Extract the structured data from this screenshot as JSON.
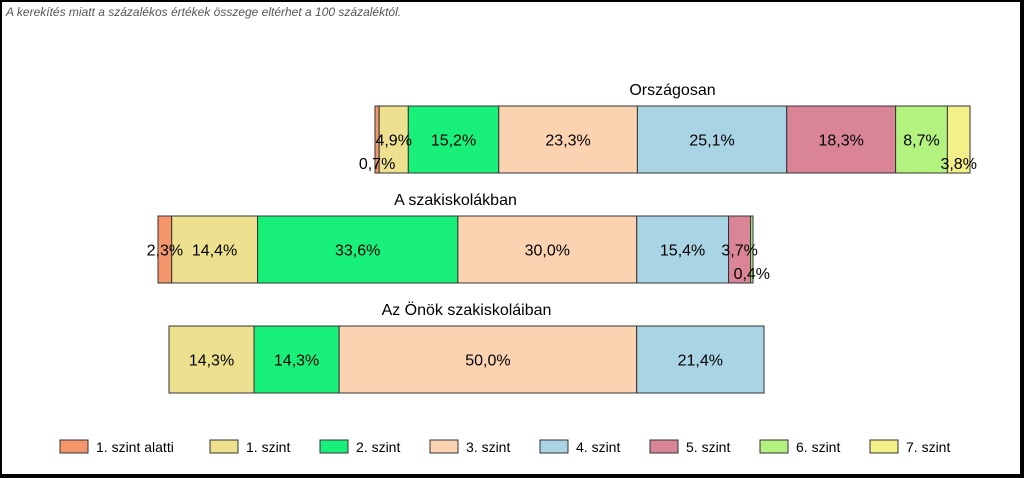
{
  "note": "A kerekítés miatt a  százalékos értékek összege eltérhet a 100 százaléktól.",
  "chart_data": {
    "type": "bar",
    "orientation": "horizontal-stacked",
    "unit": "%",
    "series": [
      {
        "name": "1. szint alatti",
        "color": "#f4956b"
      },
      {
        "name": "1. szint",
        "color": "#ede08f"
      },
      {
        "name": "2. szint",
        "color": "#19f07a"
      },
      {
        "name": "3. szint",
        "color": "#fcd3b0"
      },
      {
        "name": "4. szint",
        "color": "#a9d4e4"
      },
      {
        "name": "5. szint",
        "color": "#d98497"
      },
      {
        "name": "6. szint",
        "color": "#b3f27f"
      },
      {
        "name": "7. szint",
        "color": "#f3f08a"
      }
    ],
    "groups": [
      {
        "title": "Országosan",
        "values": [
          0.7,
          4.9,
          15.2,
          23.3,
          25.1,
          18.3,
          8.7,
          3.8
        ],
        "labels": [
          "0,7%",
          "4,9%",
          "15,2%",
          "23,3%",
          "25,1%",
          "18,3%",
          "8,7%",
          "3,8%"
        ]
      },
      {
        "title": "A szakiskolákban",
        "values": [
          2.3,
          14.4,
          33.6,
          30.0,
          15.4,
          3.7,
          0.4,
          0
        ],
        "labels": [
          "2,3%",
          "14,4%",
          "33,6%",
          "30,0%",
          "15,4%",
          "3,7%",
          "0,4%",
          ""
        ]
      },
      {
        "title": "Az Önök szakiskoláiban",
        "values": [
          0,
          14.3,
          14.3,
          50.0,
          21.4,
          0,
          0,
          0
        ],
        "labels": [
          "",
          "14,3%",
          "14,3%",
          "50,0%",
          "21,4%",
          "",
          "",
          ""
        ]
      }
    ],
    "legend_position": "bottom"
  }
}
